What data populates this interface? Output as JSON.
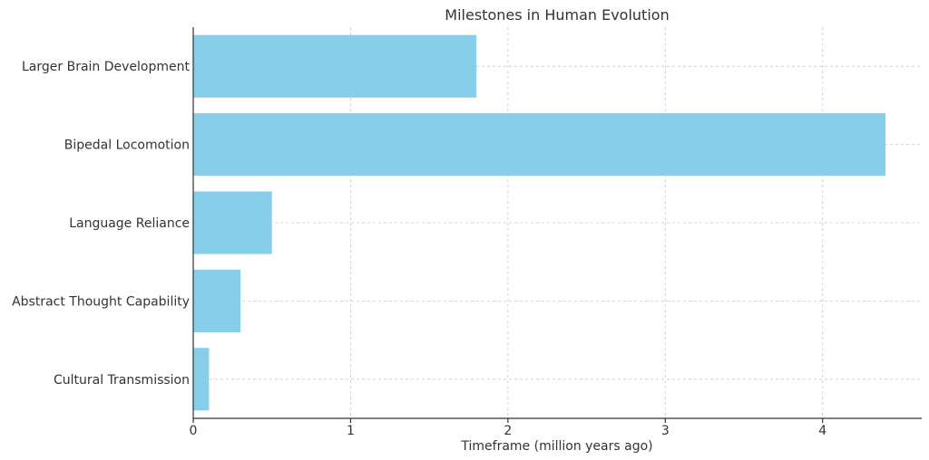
{
  "chart_data": {
    "type": "bar",
    "orientation": "horizontal",
    "title": "Milestones in Human Evolution",
    "xlabel": "Timeframe (million years ago)",
    "ylabel": "",
    "categories": [
      "Larger Brain Development",
      "Bipedal Locomotion",
      "Language Reliance",
      "Abstract Thought Capability",
      "Cultural Transmission"
    ],
    "values": [
      1.8,
      4.4,
      0.5,
      0.3,
      0.1
    ],
    "xlim": [
      0,
      4.63
    ],
    "xticks": [
      0,
      1,
      2,
      3,
      4
    ],
    "grid": true,
    "bar_color": "#87ceeb"
  }
}
